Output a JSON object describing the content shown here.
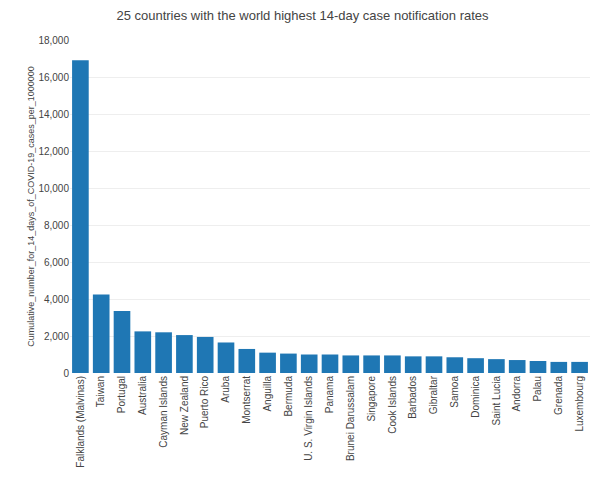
{
  "chart_data": {
    "type": "bar",
    "title": "25 countries with the world highest 14-day case notification rates",
    "ylabel": "Cumulative_number_for_14_days_of_COVID-19_cases_per_1000000",
    "categories": [
      "Falklands (Malvinas)",
      "Taiwan",
      "Portugal",
      "Australia",
      "Cayman Islands",
      "New Zealand",
      "Puerto Rico",
      "Aruba",
      "Montserrat",
      "Anguilla",
      "Bermuda",
      "U. S. Virgin Islands",
      "Panama",
      "Brunei Darussalam",
      "Singapore",
      "Cook Islands",
      "Barbados",
      "Gibraltar",
      "Samoa",
      "Dominica",
      "Saint Lucia",
      "Andorra",
      "Palau",
      "Grenada",
      "Luxembourg"
    ],
    "values": [
      16900,
      4250,
      3350,
      2250,
      2200,
      2050,
      1950,
      1650,
      1300,
      1100,
      1050,
      1000,
      1000,
      950,
      950,
      950,
      900,
      900,
      850,
      800,
      750,
      700,
      650,
      600,
      600
    ],
    "ylim": [
      0,
      18000
    ],
    "yticks": [
      0,
      {
        "value": 2000,
        "label": "2,000"
      },
      {
        "value": 4000,
        "label": "4,000"
      },
      {
        "value": 6000,
        "label": "6,000"
      },
      {
        "value": 8000,
        "label": "8,000"
      },
      {
        "value": 10000,
        "label": "10,000"
      },
      {
        "value": 12000,
        "label": "12,000"
      },
      {
        "value": 14000,
        "label": "14,000"
      },
      {
        "value": 16000,
        "label": "16,000"
      },
      {
        "value": 18000,
        "label": "18,000"
      }
    ],
    "grid": true
  }
}
